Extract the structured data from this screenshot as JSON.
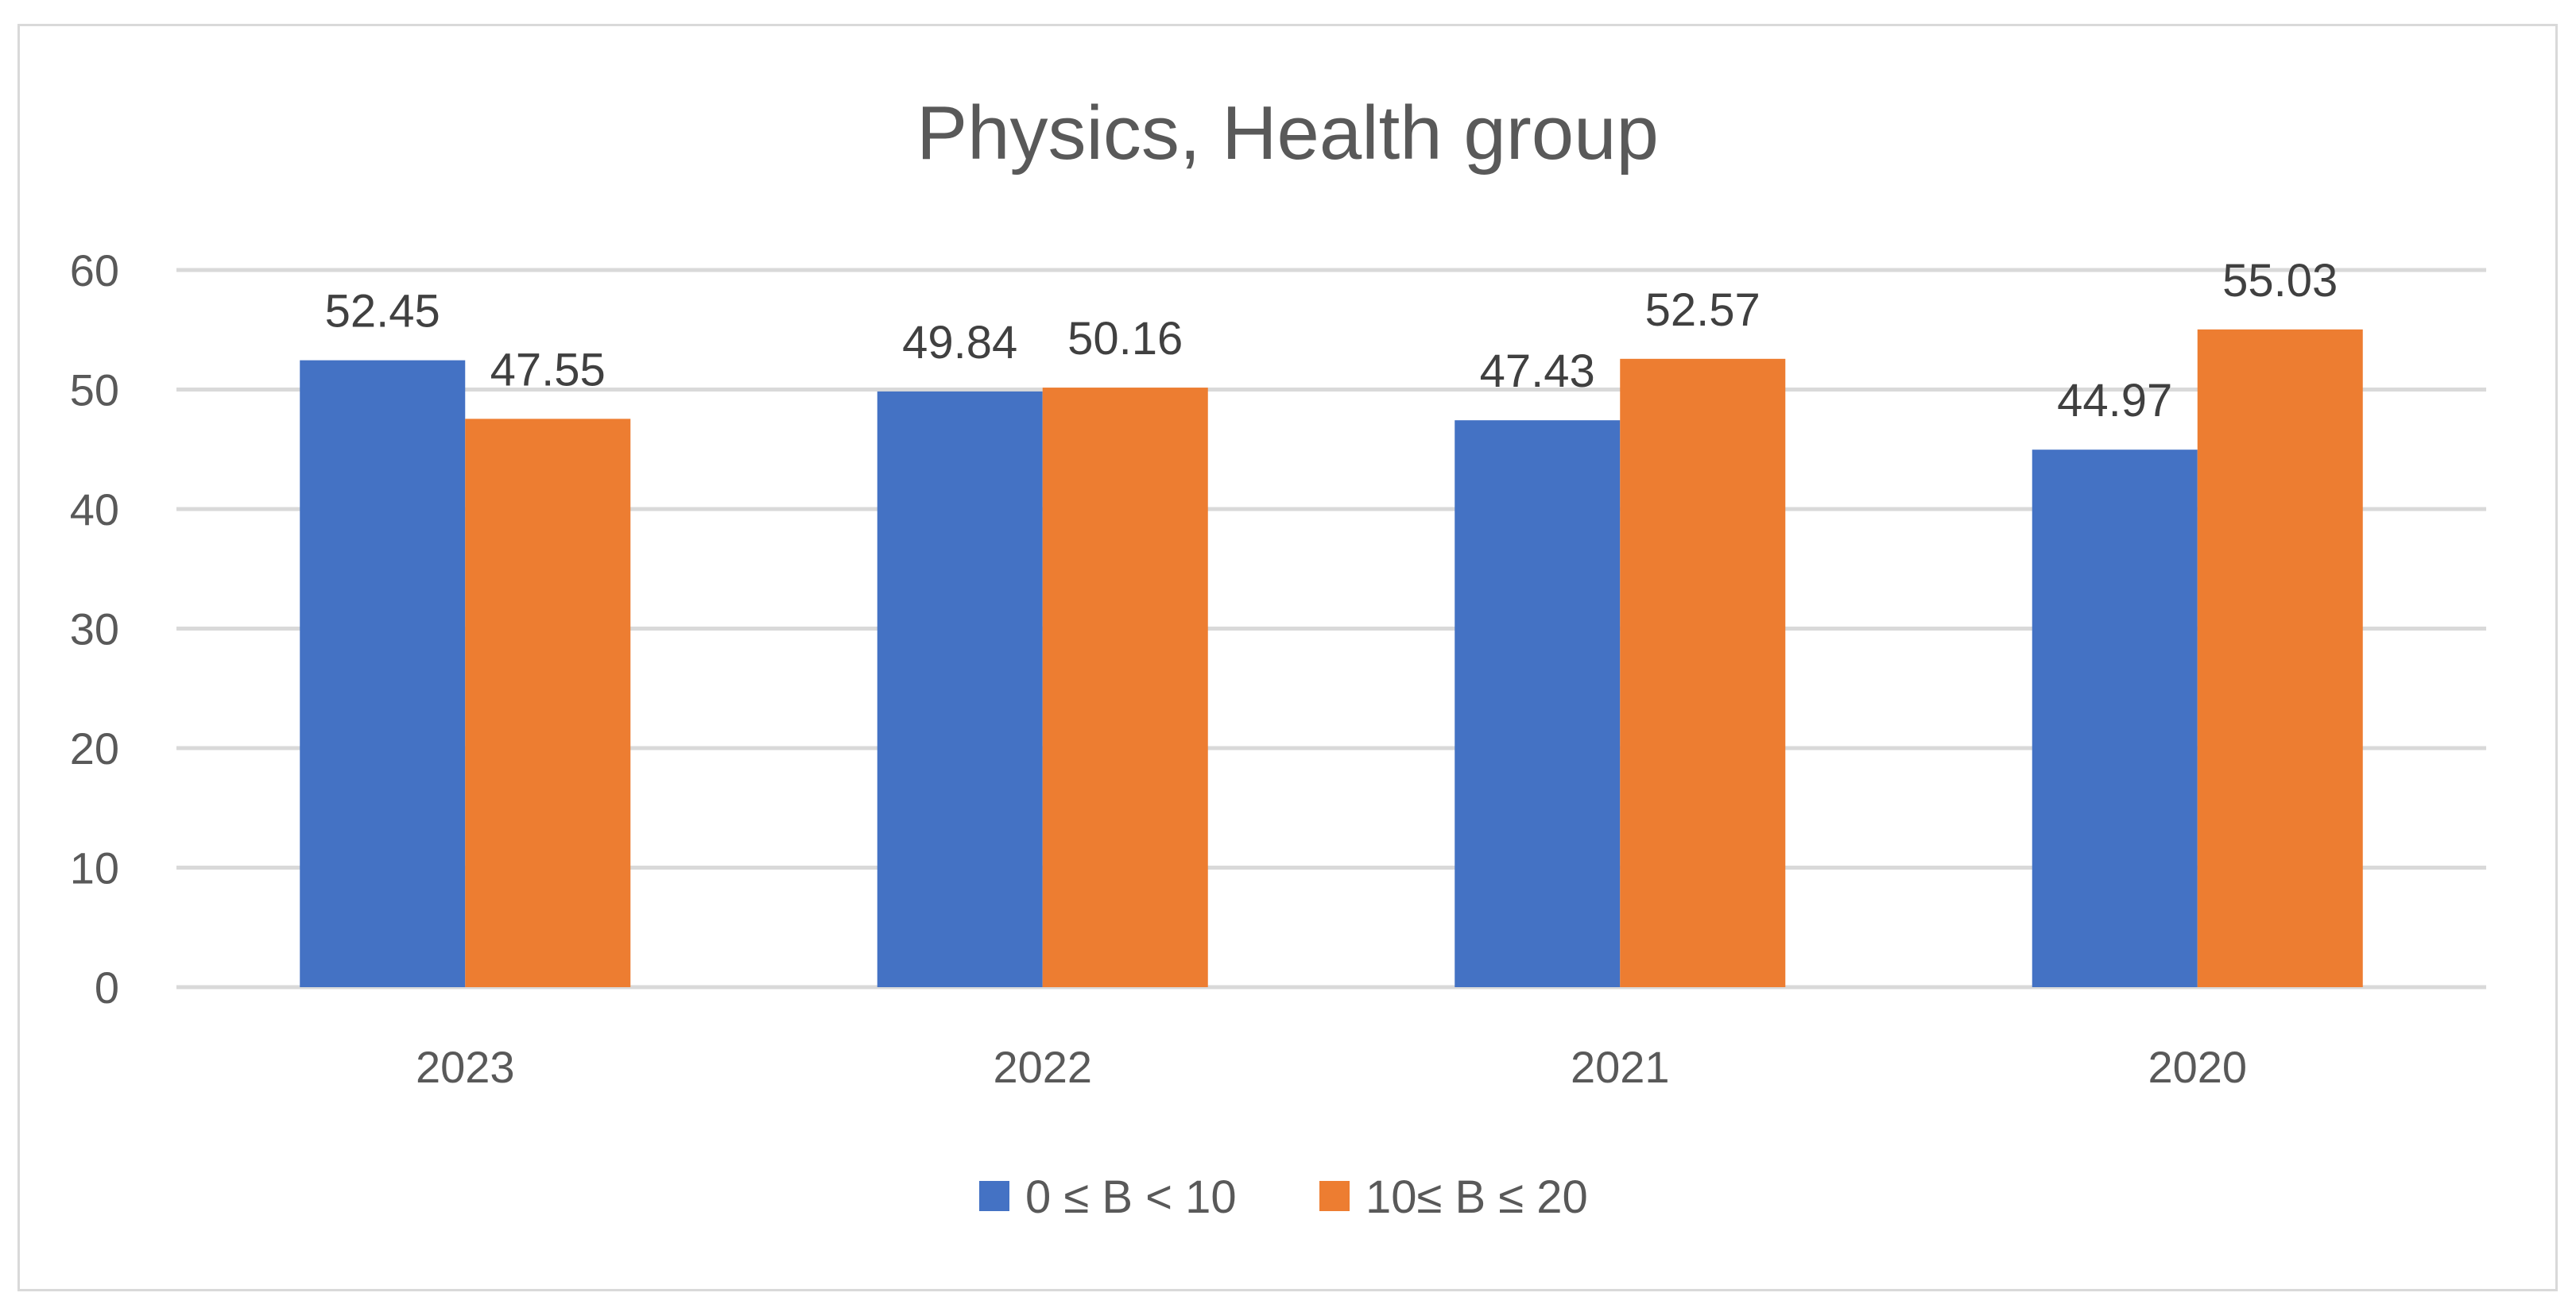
{
  "chart_data": {
    "type": "bar",
    "title": "Physics, Health group",
    "xlabel": "",
    "ylabel": "",
    "categories": [
      "2023",
      "2022",
      "2021",
      "2020"
    ],
    "series": [
      {
        "name": "0 ≤ B < 10",
        "color": "#4472c4",
        "values": [
          52.45,
          49.84,
          47.43,
          44.97
        ]
      },
      {
        "name": "10≤ B ≤ 20",
        "color": "#ed7d31",
        "values": [
          47.55,
          50.16,
          52.57,
          55.03
        ]
      }
    ],
    "ylim": [
      0,
      60
    ],
    "yticks": [
      "0",
      "10",
      "20",
      "30",
      "40",
      "50",
      "60"
    ],
    "data_labels": [
      [
        "52.45",
        "49.84",
        "47.43",
        "44.97"
      ],
      [
        "47.55",
        "50.16",
        "52.57",
        "55.03"
      ]
    ],
    "grid": true,
    "legend_position": "bottom"
  }
}
